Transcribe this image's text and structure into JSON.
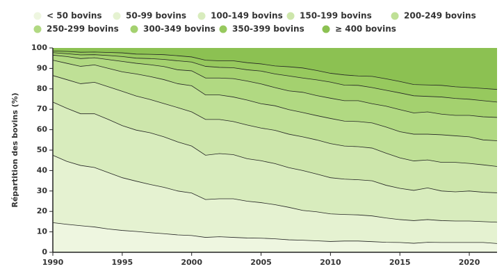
{
  "chart_data": {
    "type": "stacked_area",
    "y_label": "Répartition des bovins (%)",
    "x": [
      1990,
      1991,
      1992,
      1993,
      1994,
      1995,
      1996,
      1997,
      1998,
      1999,
      2000,
      2001,
      2002,
      2003,
      2004,
      2005,
      2006,
      2007,
      2008,
      2009,
      2010,
      2011,
      2012,
      2013,
      2014,
      2015,
      2016,
      2017,
      2018,
      2019,
      2020,
      2021,
      2022
    ],
    "xlim": [
      1990,
      2022
    ],
    "xticks": [
      1990,
      1995,
      2000,
      2005,
      2010,
      2015,
      2020
    ],
    "ylim": [
      0,
      100
    ],
    "yticks": [
      0,
      10,
      20,
      30,
      40,
      50,
      60,
      70,
      80,
      90,
      100
    ],
    "series": [
      {
        "name": "< 50 bovins",
        "color": "#eef6e0",
        "values": [
          14.5,
          13.7,
          13,
          12.4,
          11.4,
          10.7,
          10.2,
          9.6,
          9.1,
          8.5,
          8.2,
          7.3,
          7.6,
          7.3,
          7,
          6.9,
          6.6,
          6.1,
          5.9,
          5.6,
          5.3,
          5.5,
          5.5,
          5.2,
          4.9,
          4.8,
          4.4,
          4.9,
          4.8,
          4.8,
          4.8,
          4.8,
          4.3
        ]
      },
      {
        "name": "50-99 bovins",
        "color": "#e5f2d1",
        "values": [
          33,
          30.8,
          29.5,
          29.1,
          27.6,
          25.8,
          24.6,
          23.6,
          22.7,
          21.5,
          20.8,
          18.5,
          18.6,
          18.9,
          18,
          17.4,
          16.7,
          15.9,
          14.6,
          14.2,
          13.5,
          13,
          12.8,
          12.6,
          11.9,
          11.2,
          11.1,
          11.1,
          10.7,
          10.5,
          10.5,
          10.2,
          10.4
        ]
      },
      {
        "name": "100-149 bovins",
        "color": "#d8ecbd",
        "values": [
          26,
          26,
          25.3,
          26.3,
          26,
          25.5,
          25,
          25.3,
          24.7,
          24,
          23,
          21.7,
          22.1,
          21.6,
          20.8,
          20.5,
          20.1,
          19.4,
          19.5,
          18.5,
          17.7,
          17.3,
          17.2,
          17.2,
          16,
          15.3,
          14.8,
          15.5,
          14.5,
          14.3,
          14.7,
          14.4,
          14.4
        ]
      },
      {
        "name": "150-199 bovins",
        "color": "#cde6ab",
        "values": [
          13,
          14,
          14.7,
          15.4,
          16,
          16.8,
          16.7,
          16.3,
          16.3,
          16.8,
          16.7,
          17.5,
          16.7,
          16.2,
          16.5,
          16,
          16.3,
          16.4,
          16.5,
          16.7,
          16.7,
          16.2,
          16.2,
          16,
          15.7,
          14.9,
          14.4,
          13.7,
          14,
          14.4,
          13.5,
          13.4,
          12.9
        ]
      },
      {
        "name": "200-249 bovins",
        "color": "#bfe096",
        "values": [
          7.5,
          8,
          8.5,
          8.5,
          9,
          9.5,
          10.8,
          11.2,
          11.7,
          11.7,
          12.8,
          12,
          12,
          12,
          12.2,
          11.9,
          12,
          12,
          11.9,
          11.9,
          12.3,
          12.2,
          12.3,
          12.3,
          12.8,
          12.8,
          13.1,
          12.6,
          13.5,
          13,
          13,
          12.2,
          12.6
        ]
      },
      {
        "name": "250-299 bovins",
        "color": "#b1d982",
        "values": [
          2.5,
          3.3,
          3.8,
          3.5,
          4.3,
          5.1,
          5.2,
          5.8,
          6.4,
          6.8,
          7.3,
          8.3,
          8.3,
          9,
          9.3,
          9.7,
          8.9,
          9.2,
          9.9,
          9.8,
          9.9,
          10,
          10.2,
          9.4,
          10.2,
          10.8,
          10.4,
          10.9,
          10.1,
          10,
          10.5,
          11.3,
          11.4
        ]
      },
      {
        "name": "300-349 bovins",
        "color": "#a4d16f",
        "values": [
          1.2,
          1.4,
          1.8,
          1.5,
          2,
          2.4,
          2.5,
          3,
          3.5,
          4.4,
          4.3,
          5.7,
          5.2,
          5.3,
          5.5,
          6.3,
          6.7,
          7.3,
          7,
          7.7,
          7.9,
          7.6,
          7.5,
          7.9,
          7.8,
          8.2,
          8.4,
          7.6,
          8.4,
          8.3,
          7.9,
          7.9,
          7.5
        ]
      },
      {
        "name": "350-399 bovins",
        "color": "#97c95e",
        "values": [
          0.8,
          1.1,
          1.3,
          1.3,
          1.5,
          1.8,
          2,
          2.1,
          2.3,
          2.5,
          2.5,
          3,
          3.2,
          3.4,
          3.5,
          3.5,
          3.9,
          4.5,
          4.9,
          4.6,
          4.3,
          5,
          4.6,
          5.5,
          5.6,
          5.6,
          5.5,
          5.6,
          5.7,
          5.7,
          5.7,
          6,
          6.2
        ]
      },
      {
        "name": "≥ 400 bovins",
        "color": "#8cc152",
        "values": [
          1.5,
          1.7,
          2.1,
          2,
          2.2,
          2.4,
          3,
          3.1,
          3.3,
          3.8,
          4.4,
          6,
          6.3,
          6.3,
          7.2,
          7.8,
          8.8,
          9.2,
          9.8,
          11,
          12.4,
          13.2,
          13.7,
          13.9,
          15.1,
          16.4,
          17.9,
          18.1,
          18.3,
          19,
          19.4,
          19.8,
          20.3
        ]
      }
    ]
  }
}
